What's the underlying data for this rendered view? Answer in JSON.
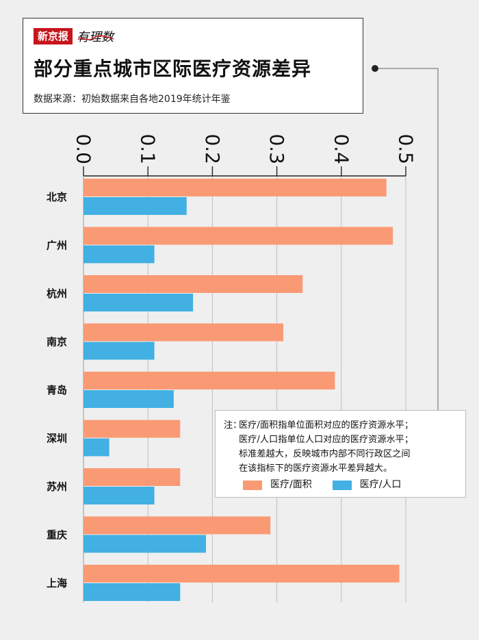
{
  "header": {
    "brand_name": "新京报",
    "brand_sub": "有理数",
    "title": "部分重点城市区际医疗资源差异",
    "source": "数据来源：初始数据来自各地2019年统计年鉴"
  },
  "note": {
    "prefix": "注：",
    "lines": [
      "医疗/面积指单位面积对应的医疗资源水平；",
      "医疗/人口指单位人口对应的医疗资源水平；",
      "标准差越大，反映城市内部不同行政区之间",
      "在该指标下的医疗资源水平差异越大。"
    ]
  },
  "colors": {
    "area": "#fa9a75",
    "population": "#42b0e2",
    "brand_red": "#c8151d"
  },
  "chart_data": {
    "type": "bar",
    "orientation": "horizontal",
    "categories": [
      "北京",
      "广州",
      "杭州",
      "南京",
      "青岛",
      "深圳",
      "苏州",
      "重庆",
      "上海"
    ],
    "series": [
      {
        "name": "医疗/面积",
        "values": [
          0.47,
          0.48,
          0.34,
          0.31,
          0.39,
          0.15,
          0.15,
          0.29,
          0.49
        ]
      },
      {
        "name": "医疗/人口",
        "values": [
          0.16,
          0.11,
          0.17,
          0.11,
          0.14,
          0.04,
          0.11,
          0.19,
          0.15
        ]
      }
    ],
    "xlim": [
      0,
      0.5
    ],
    "xticks": [
      "0.0",
      "0.1",
      "0.2",
      "0.3",
      "0.4",
      "0.5"
    ],
    "tick_values": [
      0,
      0.1,
      0.2,
      0.3,
      0.4,
      0.5
    ],
    "axis_position": "top",
    "legend_position": "bottom-right"
  }
}
